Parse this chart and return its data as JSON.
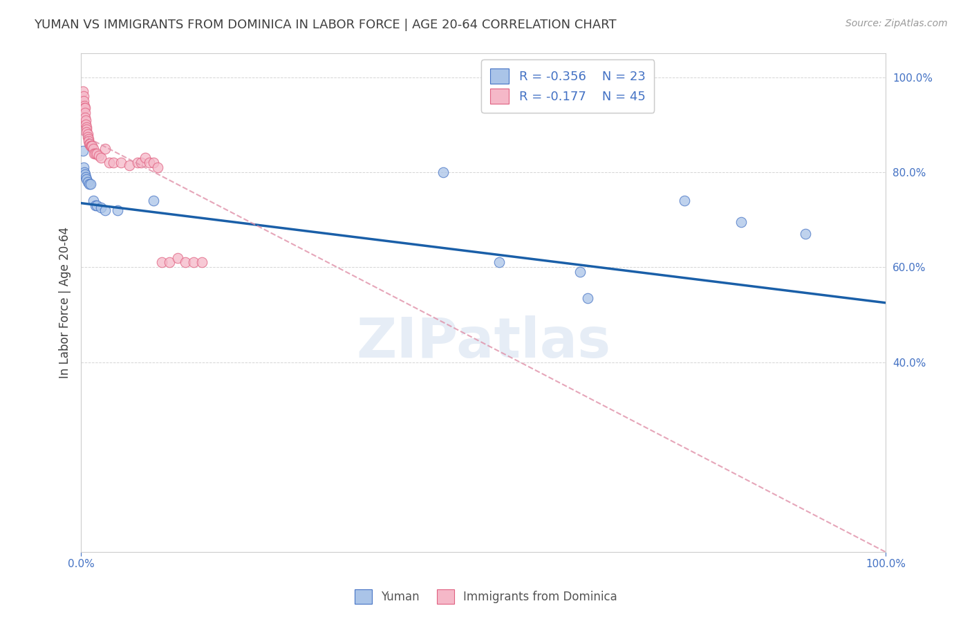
{
  "title": "YUMAN VS IMMIGRANTS FROM DOMINICA IN LABOR FORCE | AGE 20-64 CORRELATION CHART",
  "source": "Source: ZipAtlas.com",
  "ylabel": "In Labor Force | Age 20-64",
  "xlim": [
    0.0,
    1.0
  ],
  "ylim": [
    0.0,
    1.05
  ],
  "x_ticks": [
    0.0,
    1.0
  ],
  "y_ticks": [
    0.4,
    0.6,
    0.8,
    1.0
  ],
  "blue_scatter_x": [
    0.002,
    0.003,
    0.004,
    0.005,
    0.006,
    0.007,
    0.008,
    0.01,
    0.012,
    0.015,
    0.018,
    0.02,
    0.025,
    0.03,
    0.045,
    0.09,
    0.45,
    0.52,
    0.62,
    0.75,
    0.82,
    0.9,
    0.63
  ],
  "blue_scatter_y": [
    0.845,
    0.81,
    0.8,
    0.795,
    0.79,
    0.785,
    0.78,
    0.775,
    0.775,
    0.74,
    0.73,
    0.73,
    0.725,
    0.72,
    0.72,
    0.74,
    0.8,
    0.61,
    0.59,
    0.74,
    0.695,
    0.67,
    0.535
  ],
  "pink_scatter_x": [
    0.002,
    0.003,
    0.003,
    0.004,
    0.004,
    0.005,
    0.005,
    0.005,
    0.006,
    0.006,
    0.007,
    0.007,
    0.007,
    0.008,
    0.008,
    0.009,
    0.009,
    0.01,
    0.011,
    0.012,
    0.013,
    0.014,
    0.015,
    0.016,
    0.018,
    0.02,
    0.022,
    0.025,
    0.03,
    0.035,
    0.04,
    0.05,
    0.06,
    0.07,
    0.075,
    0.08,
    0.085,
    0.09,
    0.095,
    0.1,
    0.11,
    0.12,
    0.13,
    0.14,
    0.15
  ],
  "pink_scatter_y": [
    0.97,
    0.96,
    0.95,
    0.94,
    0.935,
    0.935,
    0.925,
    0.915,
    0.91,
    0.9,
    0.895,
    0.89,
    0.885,
    0.88,
    0.875,
    0.87,
    0.865,
    0.86,
    0.86,
    0.855,
    0.855,
    0.855,
    0.85,
    0.84,
    0.84,
    0.84,
    0.835,
    0.83,
    0.85,
    0.82,
    0.82,
    0.82,
    0.815,
    0.82,
    0.82,
    0.83,
    0.82,
    0.82,
    0.81,
    0.61,
    0.61,
    0.62,
    0.61,
    0.61,
    0.61
  ],
  "blue_color": "#aac4e8",
  "pink_color": "#f5b8c8",
  "blue_edge_color": "#4472c4",
  "pink_edge_color": "#e06080",
  "blue_line_color": "#1a5fa8",
  "pink_line_color": "#e090a8",
  "legend_R_blue": "-0.356",
  "legend_N_blue": "23",
  "legend_R_pink": "-0.177",
  "legend_N_pink": "45",
  "legend_label_blue": "Yuman",
  "legend_label_pink": "Immigrants from Dominica",
  "watermark": "ZIPatlas",
  "blue_trend_x0": 0.0,
  "blue_trend_x1": 1.0,
  "blue_trend_y0": 0.735,
  "blue_trend_y1": 0.525,
  "pink_trend_x0": 0.0,
  "pink_trend_x1": 1.0,
  "pink_trend_y0": 0.88,
  "pink_trend_y1": 0.0,
  "background_color": "#ffffff",
  "grid_color": "#d0d0d0",
  "axis_color": "#4472c4",
  "title_color": "#404040",
  "title_fontsize": 13,
  "source_fontsize": 10,
  "scatter_size": 110
}
